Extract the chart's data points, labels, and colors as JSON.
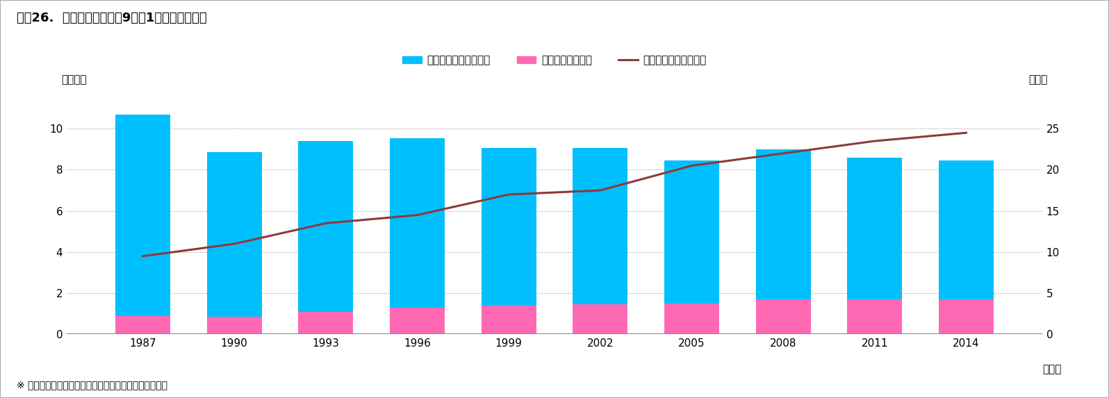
{
  "years": [
    1987,
    1990,
    1993,
    1996,
    1999,
    2002,
    2005,
    2008,
    2011,
    2014
  ],
  "total": [
    10.7,
    8.85,
    9.4,
    9.55,
    9.05,
    9.05,
    8.45,
    9.0,
    8.6,
    8.45
  ],
  "cesarean": [
    0.9,
    0.85,
    1.1,
    1.3,
    1.4,
    1.45,
    1.5,
    1.7,
    1.7,
    1.7
  ],
  "cesarean_rate": [
    9.5,
    11.0,
    13.5,
    14.5,
    17.0,
    17.5,
    20.5,
    22.0,
    23.5,
    24.5
  ],
  "bar_color_blue": "#00BFFF",
  "bar_color_pink": "#FF69B4",
  "line_color": "#8B3A3A",
  "title": "図表26.  帝王切開の推移（9月の1ヵ月間の実施）",
  "legend_blue": "帝王切開以外（左軸）",
  "legend_pink": "帝王切開（左軸）",
  "legend_line": "帝王切開割合（右軸）",
  "ylabel_left": "（万件）",
  "ylabel_right": "（％）",
  "xlabel": "（年）",
  "footnote": "※ 「医療施設調査」（厚生労働省）をもとに、筆者作成",
  "ylim_left": [
    0,
    12
  ],
  "ylim_right": [
    0,
    30
  ],
  "yticks_left": [
    0,
    2,
    4,
    6,
    8,
    10
  ],
  "yticks_right": [
    0,
    5,
    10,
    15,
    20,
    25
  ],
  "bar_width": 1.8,
  "background_color": "#FFFFFF",
  "grid_color": "#999999",
  "title_fontsize": 13,
  "legend_fontsize": 11,
  "tick_fontsize": 11,
  "label_fontsize": 11,
  "footnote_fontsize": 10,
  "border_color": "#AAAAAA"
}
